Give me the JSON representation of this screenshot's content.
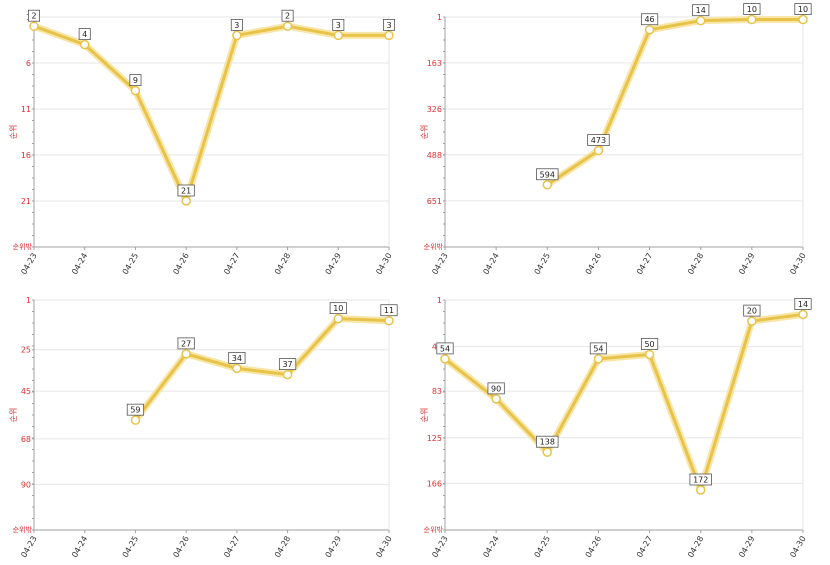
{
  "colors": {
    "line": "#e8c34a",
    "line_halo": "#f7e6a8",
    "point_fill": "#ffffff",
    "tick": "#e03030"
  },
  "chart_data": [
    {
      "type": "line",
      "y_reversed": true,
      "categories": [
        "04-23",
        "04-24",
        "04-25",
        "04-26",
        "04-27",
        "04-28",
        "04-29",
        "04-30"
      ],
      "values": [
        2,
        4,
        9,
        21,
        3,
        2,
        3,
        3
      ],
      "labels": [
        "2",
        "4",
        "9",
        "21",
        "3",
        "2",
        "3",
        "3"
      ],
      "yticks": [
        1,
        6,
        11,
        16,
        21
      ],
      "ylim": [
        1,
        26
      ],
      "ylabel": "순위",
      "bottom_label": "순위밖",
      "grid": true
    },
    {
      "type": "line",
      "y_reversed": true,
      "categories": [
        "04-23",
        "04-24",
        "04-25",
        "04-26",
        "04-27",
        "04-28",
        "04-29",
        "04-30"
      ],
      "values": [
        null,
        null,
        594,
        473,
        46,
        14,
        10,
        10
      ],
      "labels": [
        "",
        "",
        "594",
        "473",
        "46",
        "14",
        "10",
        "10"
      ],
      "yticks": [
        1,
        163,
        326,
        488,
        651
      ],
      "ylim": [
        1,
        814
      ],
      "ylabel": "순위",
      "bottom_label": "순위밖",
      "grid": true
    },
    {
      "type": "line",
      "y_reversed": true,
      "categories": [
        "04-23",
        "04-24",
        "04-25",
        "04-26",
        "04-27",
        "04-28",
        "04-29",
        "04-30"
      ],
      "values": [
        null,
        null,
        59,
        27,
        34,
        37,
        10,
        11
      ],
      "labels": [
        "",
        "",
        "59",
        "27",
        "34",
        "37",
        "10",
        "11"
      ],
      "yticks": [
        1,
        25,
        45,
        68,
        90
      ],
      "ylim": [
        1,
        112
      ],
      "ylabel": "순위",
      "bottom_label": "순위밖",
      "grid": true
    },
    {
      "type": "line",
      "y_reversed": true,
      "categories": [
        "04-23",
        "04-24",
        "04-25",
        "04-26",
        "04-27",
        "04-28",
        "04-29",
        "04-30"
      ],
      "values": [
        54,
        90,
        138,
        54,
        50,
        172,
        20,
        14
      ],
      "labels": [
        "54",
        "90",
        "138",
        "54",
        "50",
        "172",
        "20",
        "14"
      ],
      "yticks": [
        1,
        43,
        83,
        125,
        166
      ],
      "ylim": [
        1,
        208
      ],
      "ylabel": "순위",
      "bottom_label": "순위밖",
      "grid": true
    }
  ]
}
